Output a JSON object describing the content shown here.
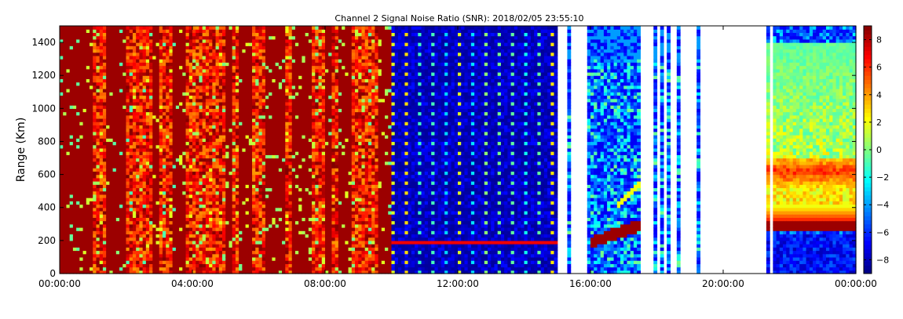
{
  "chart_data": {
    "type": "heatmap",
    "title": "Channel 2 Signal Noise Ratio (SNR): 2018/02/05 23:55:10",
    "ylabel": "Range (Km)",
    "xlabel": "",
    "x_axis": {
      "range_hours": [
        0,
        24
      ],
      "ticks": [
        {
          "hour": 0,
          "label": "00:00:00"
        },
        {
          "hour": 4,
          "label": "04:00:00"
        },
        {
          "hour": 8,
          "label": "08:00:00"
        },
        {
          "hour": 12,
          "label": "12:00:00"
        },
        {
          "hour": 16,
          "label": "16:00:00"
        },
        {
          "hour": 20,
          "label": "20:00:00"
        },
        {
          "hour": 24,
          "label": "00:00:00"
        }
      ]
    },
    "y_axis": {
      "range": [
        0,
        1500
      ],
      "ticks": [
        {
          "value": 0,
          "label": "0"
        },
        {
          "value": 200,
          "label": "200"
        },
        {
          "value": 400,
          "label": "400"
        },
        {
          "value": 600,
          "label": "600"
        },
        {
          "value": 800,
          "label": "800"
        },
        {
          "value": 1000,
          "label": "1000"
        },
        {
          "value": 1200,
          "label": "1200"
        },
        {
          "value": 1400,
          "label": "1400"
        }
      ]
    },
    "colorbar": {
      "range": [
        -9,
        9
      ],
      "colormap": "jet",
      "ticks": [
        {
          "value": -8,
          "label": "−8"
        },
        {
          "value": -6,
          "label": "−6"
        },
        {
          "value": -4,
          "label": "−4"
        },
        {
          "value": -2,
          "label": "−2"
        },
        {
          "value": 0,
          "label": "0"
        },
        {
          "value": 2,
          "label": "2"
        },
        {
          "value": 4,
          "label": "4"
        },
        {
          "value": 6,
          "label": "6"
        },
        {
          "value": 8,
          "label": "8"
        }
      ]
    },
    "no_data_intervals_hours": [
      [
        14.98,
        15.35
      ],
      [
        15.42,
        15.9
      ],
      [
        15.97,
        16.03
      ],
      [
        17.55,
        17.95
      ],
      [
        18.03,
        18.1
      ],
      [
        18.2,
        18.3
      ],
      [
        18.45,
        18.6
      ],
      [
        18.75,
        19.25
      ],
      [
        19.32,
        21.27
      ],
      [
        21.37,
        21.55
      ]
    ],
    "regions": [
      {
        "hours": [
          0,
          10
        ],
        "description_level_db": 8,
        "pattern": "saturated high SNR with vertical streaks"
      },
      {
        "hours": [
          10,
          15
        ],
        "description_level_db": -8,
        "pattern": "low SNR with periodic dots"
      },
      {
        "hours": [
          16,
          17.5
        ],
        "feature": "rising high-SNR layer 200-300 km"
      },
      {
        "hours": [
          21.5,
          24
        ],
        "feature": "high-SNR layers near 300-400 km and 600 km"
      }
    ]
  }
}
